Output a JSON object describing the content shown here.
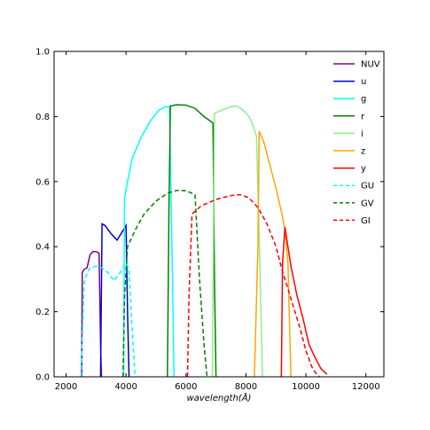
{
  "chart_data": {
    "type": "line",
    "xlabel": "wavelength(Å)",
    "ylabel": "",
    "xlim": [
      1600,
      12600
    ],
    "ylim": [
      0,
      1.0
    ],
    "x_ticks": [
      2000,
      4000,
      6000,
      8000,
      10000,
      12000
    ],
    "y_ticks": [
      0.0,
      0.2,
      0.4,
      0.6,
      0.8,
      1.0
    ],
    "x_tick_labels": [
      "2000",
      "4000",
      "6000",
      "8000",
      "10000",
      "12000"
    ],
    "y_tick_labels": [
      "0.0",
      "0.2",
      "0.4",
      "0.6",
      "0.8",
      "1.0"
    ],
    "legend_position": "top-right",
    "grid": false,
    "series": [
      {
        "name": "NUV",
        "color": "#800080",
        "dash": "solid",
        "points": [
          [
            2520,
            0
          ],
          [
            2540,
            0.32
          ],
          [
            2600,
            0.33
          ],
          [
            2700,
            0.335
          ],
          [
            2800,
            0.375
          ],
          [
            2900,
            0.385
          ],
          [
            3000,
            0.385
          ],
          [
            3100,
            0.38
          ],
          [
            3150,
            0.1
          ],
          [
            3180,
            0
          ]
        ]
      },
      {
        "name": "u",
        "color": "#0000cc",
        "dash": "solid",
        "points": [
          [
            3150,
            0
          ],
          [
            3200,
            0.47
          ],
          [
            3300,
            0.465
          ],
          [
            3500,
            0.44
          ],
          [
            3700,
            0.42
          ],
          [
            3800,
            0.435
          ],
          [
            4000,
            0.465
          ],
          [
            4050,
            0.2
          ],
          [
            4100,
            0
          ]
        ]
      },
      {
        "name": "g",
        "color": "#00ffff",
        "dash": "solid",
        "points": [
          [
            3920,
            0
          ],
          [
            3950,
            0.55
          ],
          [
            4050,
            0.6
          ],
          [
            4200,
            0.67
          ],
          [
            4500,
            0.735
          ],
          [
            4800,
            0.785
          ],
          [
            5100,
            0.82
          ],
          [
            5300,
            0.83
          ],
          [
            5450,
            0.83
          ],
          [
            5550,
            0.3
          ],
          [
            5600,
            0
          ]
        ]
      },
      {
        "name": "r",
        "color": "#008000",
        "dash": "solid",
        "points": [
          [
            5380,
            0
          ],
          [
            5430,
            0.5
          ],
          [
            5480,
            0.832
          ],
          [
            5700,
            0.836
          ],
          [
            6000,
            0.835
          ],
          [
            6300,
            0.825
          ],
          [
            6600,
            0.8
          ],
          [
            6900,
            0.78
          ],
          [
            6950,
            0.3
          ],
          [
            7000,
            0
          ]
        ]
      },
      {
        "name": "i",
        "color": "#90ee90",
        "dash": "solid",
        "points": [
          [
            6880,
            0
          ],
          [
            6920,
            0.5
          ],
          [
            6950,
            0.81
          ],
          [
            7200,
            0.82
          ],
          [
            7500,
            0.83
          ],
          [
            7700,
            0.832
          ],
          [
            7900,
            0.82
          ],
          [
            8100,
            0.8
          ],
          [
            8200,
            0.78
          ],
          [
            8350,
            0.74
          ],
          [
            8450,
            0.4
          ],
          [
            8550,
            0
          ]
        ]
      },
      {
        "name": "z",
        "color": "#ffa500",
        "dash": "solid",
        "points": [
          [
            8280,
            0
          ],
          [
            8400,
            0.4
          ],
          [
            8440,
            0.755
          ],
          [
            8600,
            0.72
          ],
          [
            8800,
            0.65
          ],
          [
            9000,
            0.58
          ],
          [
            9200,
            0.5
          ],
          [
            9300,
            0.45
          ],
          [
            9400,
            0.35
          ],
          [
            9500,
            0
          ]
        ]
      },
      {
        "name": "y",
        "color": "#ff0000",
        "dash": "solid",
        "points": [
          [
            9180,
            0
          ],
          [
            9220,
            0.35
          ],
          [
            9300,
            0.46
          ],
          [
            9500,
            0.34
          ],
          [
            9700,
            0.25
          ],
          [
            9900,
            0.18
          ],
          [
            10100,
            0.1
          ],
          [
            10300,
            0.06
          ],
          [
            10500,
            0.025
          ],
          [
            10700,
            0.008
          ]
        ]
      },
      {
        "name": "GU",
        "color": "#00ffff",
        "dash": "dashed",
        "points": [
          [
            2500,
            0
          ],
          [
            2600,
            0.29
          ],
          [
            2700,
            0.32
          ],
          [
            2800,
            0.335
          ],
          [
            3000,
            0.34
          ],
          [
            3200,
            0.335
          ],
          [
            3400,
            0.32
          ],
          [
            3600,
            0.295
          ],
          [
            3800,
            0.32
          ],
          [
            4000,
            0.35
          ],
          [
            4100,
            0.33
          ],
          [
            4200,
            0.15
          ],
          [
            4300,
            0
          ]
        ]
      },
      {
        "name": "GV",
        "color": "#008000",
        "dash": "dashed",
        "points": [
          [
            3900,
            0
          ],
          [
            3950,
            0.25
          ],
          [
            4050,
            0.4
          ],
          [
            4300,
            0.45
          ],
          [
            4600,
            0.5
          ],
          [
            5000,
            0.54
          ],
          [
            5400,
            0.565
          ],
          [
            5700,
            0.573
          ],
          [
            6000,
            0.572
          ],
          [
            6300,
            0.56
          ],
          [
            6450,
            0.3
          ],
          [
            6600,
            0.1
          ],
          [
            6700,
            0
          ]
        ]
      },
      {
        "name": "GI",
        "color": "#ff0000",
        "dash": "dashed",
        "points": [
          [
            6050,
            0
          ],
          [
            6100,
            0.25
          ],
          [
            6200,
            0.5
          ],
          [
            6500,
            0.525
          ],
          [
            7000,
            0.545
          ],
          [
            7500,
            0.557
          ],
          [
            7800,
            0.56
          ],
          [
            8100,
            0.55
          ],
          [
            8400,
            0.52
          ],
          [
            8700,
            0.47
          ],
          [
            9000,
            0.4
          ],
          [
            9200,
            0.33
          ],
          [
            9500,
            0.24
          ],
          [
            9800,
            0.15
          ],
          [
            10000,
            0.08
          ],
          [
            10200,
            0.03
          ],
          [
            10300,
            0.015
          ],
          [
            10450,
            0
          ]
        ]
      }
    ]
  }
}
